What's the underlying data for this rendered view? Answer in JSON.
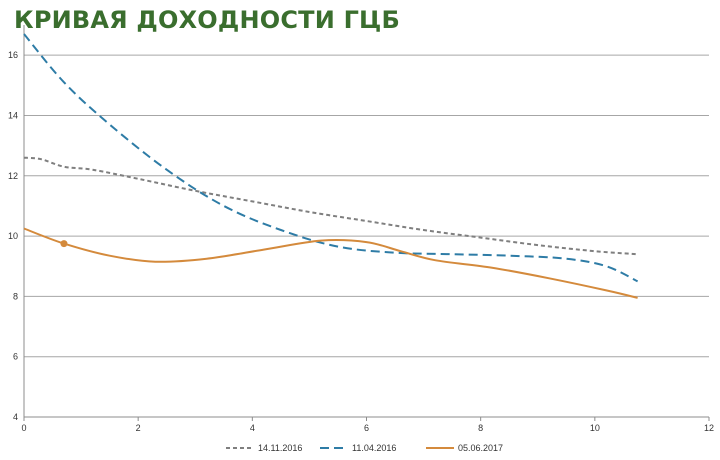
{
  "chart_data": {
    "type": "line",
    "title": "КРИВАЯ ДОХОДНОСТИ ГЦБ",
    "xlabel": "",
    "ylabel": "",
    "xlim": [
      0,
      12
    ],
    "ylim": [
      4,
      17
    ],
    "x_ticks": [
      0,
      2,
      4,
      6,
      8,
      10,
      12
    ],
    "y_ticks": [
      4,
      6,
      8,
      10,
      12,
      14,
      16
    ],
    "grid": "horizontal",
    "legend_position": "bottom",
    "series": [
      {
        "name": "14.11.2016",
        "color": "#7f7f7f",
        "dash": "short-dash",
        "x": [
          0,
          0.3,
          0.7,
          1.2,
          2,
          3,
          4,
          5,
          6,
          7,
          8,
          9,
          10,
          10.75
        ],
        "y": [
          12.6,
          12.55,
          12.3,
          12.2,
          11.9,
          11.5,
          11.15,
          10.8,
          10.5,
          10.2,
          9.95,
          9.7,
          9.5,
          9.4
        ]
      },
      {
        "name": "11.04.2016",
        "color": "#2e7ca6",
        "dash": "long-dash",
        "x": [
          0,
          0.7,
          1.5,
          2.5,
          3.5,
          4.5,
          5.5,
          6.5,
          7.5,
          8.5,
          9.5,
          10.2,
          10.75
        ],
        "y": [
          16.7,
          15.1,
          13.7,
          12.2,
          11.0,
          10.2,
          9.65,
          9.45,
          9.4,
          9.35,
          9.25,
          9.0,
          8.5
        ]
      },
      {
        "name": "05.06.2017",
        "color": "#d48a3c",
        "dash": "solid",
        "x": [
          0,
          0.7,
          1.5,
          2.3,
          3.2,
          4.2,
          5.2,
          6.0,
          6.6,
          7.2,
          8.2,
          9.2,
          10.2,
          10.75
        ],
        "y": [
          10.25,
          9.75,
          9.35,
          9.15,
          9.25,
          9.55,
          9.85,
          9.8,
          9.5,
          9.2,
          8.95,
          8.6,
          8.2,
          7.95
        ],
        "markers": [
          {
            "x": 0.7,
            "y": 9.75
          }
        ]
      }
    ]
  }
}
